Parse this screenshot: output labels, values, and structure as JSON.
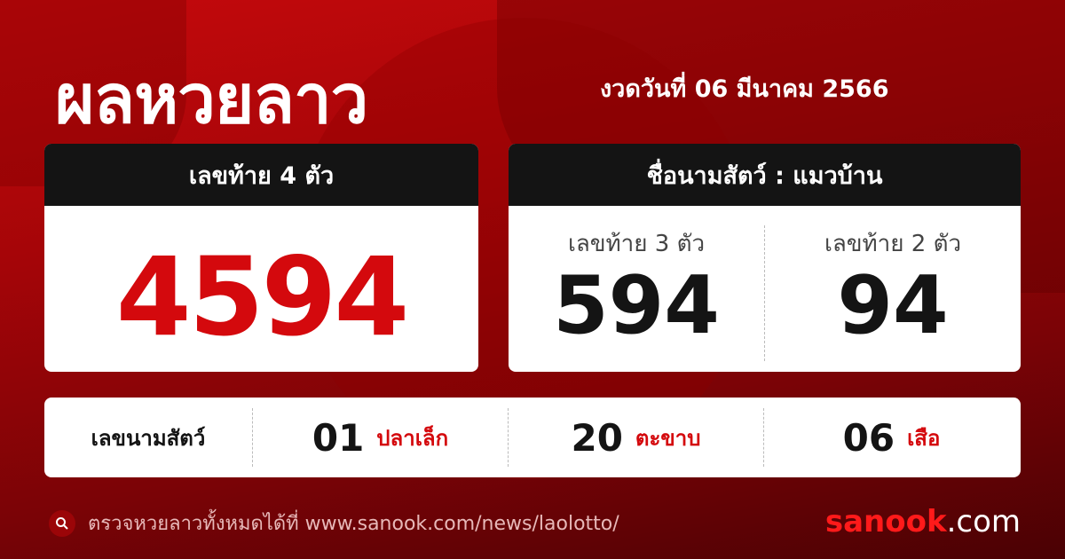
{
  "header": {
    "title": "ผลหวยลาว",
    "date": "งวดวันที่ 06 มีนาคม 2566"
  },
  "four_digit": {
    "label": "เลขท้าย 4 ตัว",
    "value": "4594"
  },
  "animal_card": {
    "label": "ชื่อนามสัตว์ : แมวบ้าน",
    "three": {
      "label": "เลขท้าย 3 ตัว",
      "value": "594"
    },
    "two": {
      "label": "เลขท้าย 2 ตัว",
      "value": "94"
    }
  },
  "animals": {
    "label": "เลขนามสัตว์",
    "items": [
      {
        "num": "01",
        "name": "ปลาเล็ก"
      },
      {
        "num": "20",
        "name": "ตะขาบ"
      },
      {
        "num": "06",
        "name": "เสือ"
      }
    ]
  },
  "footer": {
    "text": "ตรวจหวยลาวทั้งหมดได้ที่ www.sanook.com/news/laolotto/",
    "icon": "search-icon",
    "logo_a": "sanook",
    "logo_b": ".com"
  },
  "colors": {
    "accent": "#d4090d",
    "dark": "#141414"
  }
}
